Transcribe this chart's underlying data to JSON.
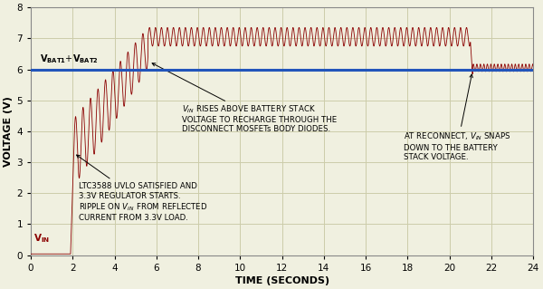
{
  "xlim": [
    0,
    24
  ],
  "ylim": [
    0,
    8
  ],
  "xticks": [
    0,
    2,
    4,
    6,
    8,
    10,
    12,
    14,
    16,
    18,
    20,
    22,
    24
  ],
  "yticks": [
    0,
    1,
    2,
    3,
    4,
    5,
    6,
    7,
    8
  ],
  "xlabel": "TIME (SECONDS)",
  "ylabel": "VOLTAGE (V)",
  "vbat_level": 6.0,
  "vbat_color": "#2255bb",
  "vin_color": "#8B0000",
  "bg_color": "#f0f0e0",
  "grid_color": "#ccccaa",
  "phase1_end": 1.9,
  "phase2_end": 2.05,
  "phase3_end": 5.6,
  "phase4_end": 21.0,
  "phase5_end": 21.1,
  "phase6_end": 24.05,
  "ripple_freq3": 2.8,
  "ripple_amp3": 1.1,
  "mean3_start": 3.3,
  "mean3_end": 6.7,
  "mean4": 7.05,
  "ripple_amp4": 0.3,
  "ripple_freq4": 3.5,
  "mean6": 6.05,
  "ripple_amp6": 0.12,
  "ripple_freq6": 6.0
}
